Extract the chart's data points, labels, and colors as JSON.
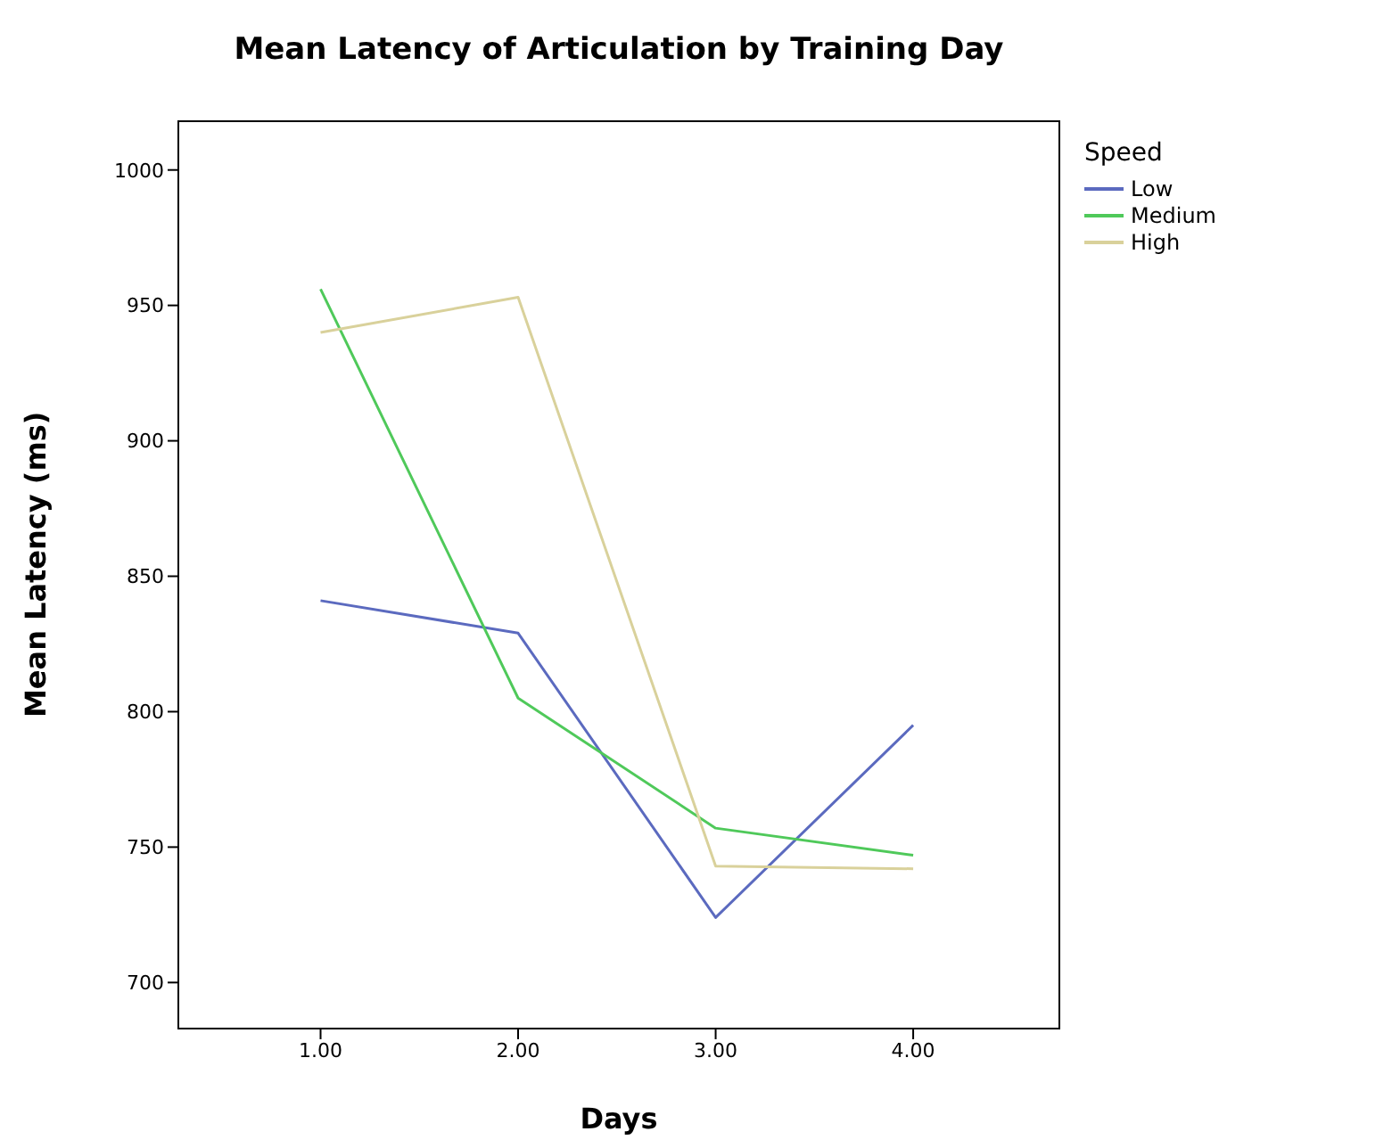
{
  "chart_data": {
    "type": "line",
    "title": "Mean Latency of Articulation by Training Day",
    "xlabel": "Days",
    "ylabel": "Mean Latency (ms)",
    "legend_title": "Speed",
    "x": [
      1,
      2,
      3,
      4
    ],
    "series": [
      {
        "name": "Low",
        "color": "#5b6abf",
        "values": [
          841,
          829,
          724,
          795
        ]
      },
      {
        "name": "Medium",
        "color": "#4fc95a",
        "values": [
          956,
          805,
          757,
          747
        ]
      },
      {
        "name": "High",
        "color": "#d9d19b",
        "values": [
          940,
          953,
          743,
          742
        ]
      }
    ],
    "xlim": [
      0.28,
      4.74
    ],
    "xticks": [
      {
        "value": 1,
        "label": "1.00"
      },
      {
        "value": 2,
        "label": "2.00"
      },
      {
        "value": 3,
        "label": "3.00"
      },
      {
        "value": 4,
        "label": "4.00"
      }
    ],
    "ylim": [
      683,
      1018
    ],
    "yticks": [
      700,
      750,
      800,
      850,
      900,
      950,
      1000
    ],
    "grid": false,
    "legend": "top right",
    "marker": "none",
    "line_style": "solid"
  }
}
